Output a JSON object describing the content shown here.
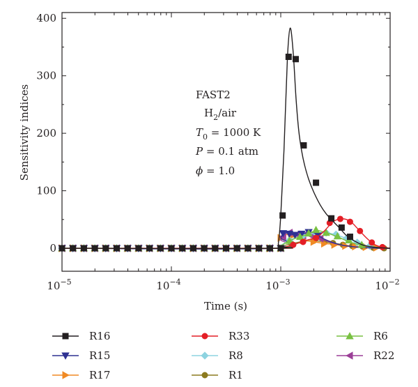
{
  "chart_data": {
    "type": "line",
    "xscale": "log",
    "xlim": [
      1e-05,
      0.01
    ],
    "ylim": [
      -40,
      410
    ],
    "xlabel": "Time (s)",
    "ylabel": "Sensitivity indices",
    "xticks": [
      {
        "value": 1e-05,
        "base": "10",
        "exp": "−5"
      },
      {
        "value": 0.0001,
        "base": "10",
        "exp": "−4"
      },
      {
        "value": 0.001,
        "base": "10",
        "exp": "−3"
      },
      {
        "value": 0.01,
        "base": "10",
        "exp": "−2"
      }
    ],
    "yticks": [
      {
        "value": 0,
        "label": "0"
      },
      {
        "value": 100,
        "label": "100"
      },
      {
        "value": 200,
        "label": "200"
      },
      {
        "value": 300,
        "label": "300"
      },
      {
        "value": 400,
        "label": "400"
      }
    ],
    "annotation": {
      "line1": "FAST2",
      "line2_main": "H",
      "line2_sub": "2",
      "line2_rest": "/air",
      "line3_var": "T",
      "line3_sub": "0",
      "line3_rest": " = 1000 K",
      "line4_var": "P",
      "line4_rest": " = 0.1 atm",
      "line5_var": "ϕ",
      "line5_rest": " = 1.0"
    },
    "legend_position": "below",
    "series": [
      {
        "name": "R16",
        "color": "#231f20",
        "marker": "square",
        "x": [
          0.0009,
          0.00095,
          0.001,
          0.00107,
          0.00115,
          0.00122,
          0.0013,
          0.00138,
          0.00146,
          0.00155,
          0.00165,
          0.0018,
          0.002,
          0.0023,
          0.0026,
          0.003,
          0.0035,
          0.004,
          0.005,
          0.006,
          0.008,
          0.01
        ],
        "y": [
          0,
          8,
          57,
          170,
          330,
          383,
          340,
          260,
          205,
          170,
          145,
          120,
          98,
          75,
          60,
          47,
          34,
          22,
          10,
          4,
          1,
          0
        ],
        "marker_x": [
          0.00104,
          0.00118,
          0.00137,
          0.00162,
          0.0021,
          0.0029,
          0.0036,
          0.0043
        ],
        "marker_y": [
          57,
          333,
          329,
          179,
          114,
          52,
          36,
          20
        ]
      },
      {
        "name": "R33",
        "color": "#e41e26",
        "marker": "circle",
        "x": [
          0.0009,
          0.001,
          0.0012,
          0.0015,
          0.0018,
          0.0021,
          0.0025,
          0.003,
          0.0035,
          0.004,
          0.0045,
          0.005,
          0.006,
          0.007,
          0.008,
          0.01
        ],
        "y": [
          0,
          1,
          4,
          10,
          15,
          18,
          30,
          46,
          51,
          50,
          44,
          35,
          19,
          8,
          3,
          0
        ],
        "marker_x": [
          0.0013,
          0.0016,
          0.0021,
          0.0028,
          0.0035,
          0.0043,
          0.0053,
          0.0068,
          0.0085
        ],
        "marker_y": [
          6,
          11,
          18,
          44,
          51,
          46,
          30,
          10,
          2
        ]
      },
      {
        "name": "R6",
        "color": "#79c142",
        "marker": "triangle-up",
        "x": [
          0.0009,
          0.001,
          0.0012,
          0.0015,
          0.0018,
          0.0021,
          0.0025,
          0.003,
          0.0035,
          0.004,
          0.005,
          0.006,
          0.008,
          0.01
        ],
        "y": [
          0,
          4,
          13,
          20,
          25,
          31,
          28,
          23,
          18,
          13,
          7,
          4,
          1,
          0
        ],
        "marker_x": [
          0.0012,
          0.0015,
          0.0018,
          0.0021,
          0.0026,
          0.0033,
          0.0042,
          0.0055
        ],
        "marker_y": [
          13,
          20,
          26,
          32,
          27,
          21,
          14,
          6
        ]
      },
      {
        "name": "R15",
        "color": "#2e3192",
        "marker": "triangle-down",
        "x": [
          0.0009,
          0.001,
          0.00105,
          0.0011,
          0.0012,
          0.0014,
          0.0016,
          0.0018,
          0.002,
          0.0022,
          0.0025,
          0.003,
          0.0035,
          0.004,
          0.005,
          0.006,
          0.008,
          0.01
        ],
        "y": [
          0,
          18,
          26,
          27,
          25,
          23,
          25,
          28,
          27,
          22,
          16,
          10,
          6,
          4,
          2,
          1,
          0,
          0
        ],
        "marker_x": [
          0.00105,
          0.0012,
          0.00135,
          0.00155,
          0.0018,
          0.0022
        ],
        "marker_y": [
          26,
          25,
          23,
          25,
          28,
          22
        ]
      },
      {
        "name": "R8",
        "color": "#8dd3e0",
        "marker": "diamond",
        "x": [
          0.0009,
          0.001,
          0.0012,
          0.0015,
          0.0018,
          0.0021,
          0.0025,
          0.003,
          0.0035,
          0.004,
          0.005,
          0.006,
          0.008,
          0.01
        ],
        "y": [
          0,
          5,
          14,
          20,
          24,
          26,
          27,
          25,
          21,
          17,
          10,
          5,
          1,
          0
        ],
        "marker_x": [
          0.0012,
          0.0016,
          0.0021,
          0.0026,
          0.0032,
          0.004,
          0.005,
          0.0065
        ],
        "marker_y": [
          14,
          22,
          26,
          27,
          24,
          17,
          10,
          4
        ]
      },
      {
        "name": "R22",
        "color": "#9b3f97",
        "marker": "triangle-left",
        "x": [
          0.0009,
          0.001,
          0.0011,
          0.0012,
          0.0014,
          0.0016,
          0.0018,
          0.002,
          0.0023,
          0.0026,
          0.003,
          0.0035,
          0.004,
          0.005,
          0.006,
          0.008,
          0.01
        ],
        "y": [
          0,
          15,
          25,
          27,
          24,
          22,
          23,
          21,
          17,
          13,
          9,
          6,
          4,
          2,
          1,
          0,
          0
        ],
        "marker_x": [
          0.00105,
          0.0012,
          0.0014,
          0.0016,
          0.0019,
          0.0023
        ],
        "marker_y": [
          20,
          27,
          24,
          22,
          22,
          17
        ]
      },
      {
        "name": "R17",
        "color": "#f08a24",
        "marker": "triangle-right",
        "x": [
          0.0009,
          0.001,
          0.0011,
          0.0013,
          0.0016,
          0.0019,
          0.0022,
          0.0026,
          0.003,
          0.0035,
          0.004,
          0.005,
          0.006,
          0.008,
          0.01
        ],
        "y": [
          0,
          18,
          24,
          20,
          14,
          12,
          10,
          8,
          7,
          5,
          4,
          2,
          1,
          0,
          0
        ],
        "marker_x": [
          0.001,
          0.00125,
          0.0016,
          0.002,
          0.0025,
          0.0031,
          0.0039,
          0.0048,
          0.006,
          0.0075
        ],
        "marker_y": [
          18,
          21,
          14,
          11,
          8,
          6,
          4,
          3,
          2,
          1
        ]
      },
      {
        "name": "R1",
        "color": "#8c7a1f",
        "marker": "circle",
        "x": [
          0.0009,
          0.001,
          0.0012,
          0.0015,
          0.0018,
          0.0021,
          0.0025,
          0.003,
          0.0035,
          0.004,
          0.005,
          0.006,
          0.008,
          0.01
        ],
        "y": [
          0,
          3,
          7,
          11,
          13,
          13,
          11,
          9,
          7,
          5,
          3,
          2,
          0,
          0
        ],
        "marker_x": [
          0.00125,
          0.0016,
          0.002,
          0.0025,
          0.003,
          0.0037,
          0.0045,
          0.0056,
          0.007,
          0.0088
        ],
        "marker_y": [
          8,
          12,
          13,
          11,
          9,
          6,
          4,
          3,
          1,
          0
        ]
      }
    ]
  }
}
